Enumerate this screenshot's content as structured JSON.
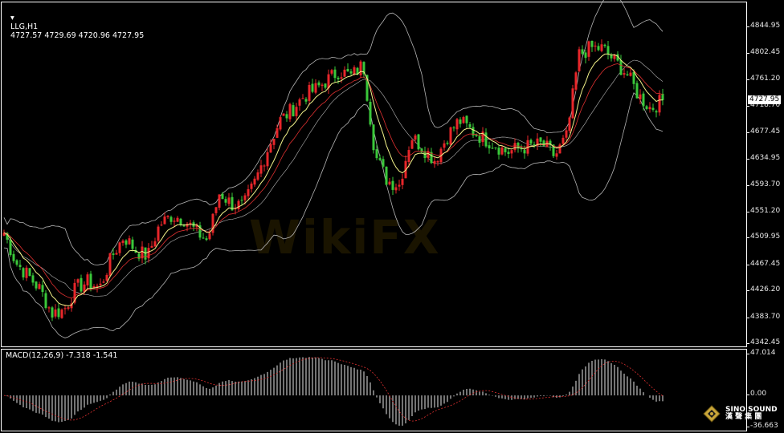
{
  "header": {
    "symbol": "LLG,H1",
    "ohlc": "4727.57 4729.69 4720.96 4727.95"
  },
  "macd_label": "MACD(12,26,9) -7.318 -1.541",
  "watermark": "WikiFX",
  "logo": {
    "line1": "SINO SOUND",
    "line2": "漢 聲 集 團"
  },
  "colors": {
    "up": "#e8262a",
    "down": "#3ac83a",
    "bands": "#b4b4b4",
    "fast_ma": "#f2f28a",
    "slow_ma": "#e03030",
    "macd_hist": "#e8e8e8",
    "macd_signal": "#e03030"
  },
  "chart_data": [
    {
      "type": "candlestick",
      "title": "LLG,H1",
      "current_price": "4727.95",
      "y_ticks": [
        "4844.95",
        "4802.45",
        "4761.20",
        "4718.70",
        "4677.45",
        "4634.95",
        "4593.70",
        "4551.20",
        "4509.95",
        "4467.45",
        "4426.20",
        "4383.70",
        "4342.45"
      ],
      "ylim": [
        4342.45,
        4844.95
      ],
      "closes": [
        4518,
        4470,
        4450,
        4428,
        4390,
        4395,
        4430,
        4440,
        4430,
        4480,
        4512,
        4490,
        4480,
        4531,
        4545,
        4540,
        4520,
        4505,
        4582,
        4563,
        4560,
        4600,
        4650,
        4695,
        4712,
        4734,
        4745,
        4760,
        4775,
        4766,
        4785,
        4640,
        4600,
        4594,
        4671,
        4652,
        4633,
        4671,
        4696,
        4680,
        4668,
        4658,
        4645,
        4652,
        4655,
        4658,
        4639,
        4671,
        4800,
        4811,
        4810,
        4790,
        4770,
        4735,
        4715,
        4727.95
      ],
      "indicators": [
        "Bollinger Bands",
        "Moving Average",
        "Moving Average"
      ]
    },
    {
      "type": "bar",
      "title": "MACD(12,26,9)",
      "values": {
        "macd": "-7.318",
        "signal": "-1.541"
      },
      "y_ticks": [
        "47.014",
        "0.00",
        "-36.663"
      ],
      "ylim": [
        -36.663,
        47.014
      ]
    }
  ]
}
